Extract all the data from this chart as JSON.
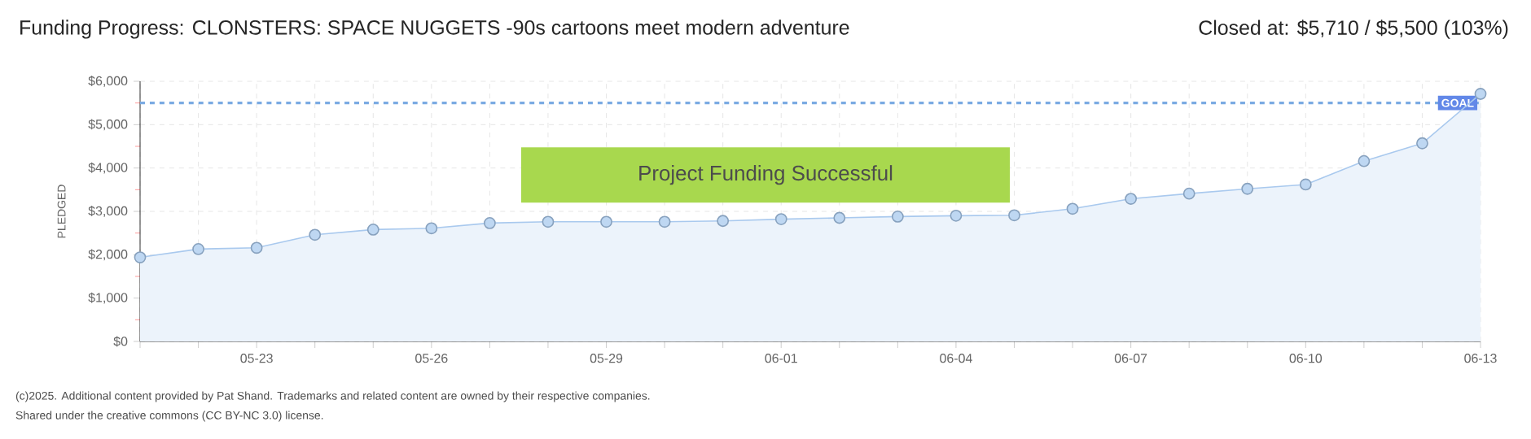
{
  "chart_data": {
    "type": "area",
    "title": "Funding Progress: CLONSTERS: SPACE NUGGETS -90s cartoons meet modern adventure",
    "ylabel": "PLEDGED",
    "categories": [
      null,
      null,
      "05-23",
      null,
      null,
      "05-26",
      null,
      null,
      "05-29",
      null,
      null,
      "06-01",
      null,
      null,
      "06-04",
      null,
      null,
      "06-07",
      null,
      null,
      "06-10",
      null,
      null,
      "06-13"
    ],
    "series": [
      {
        "color": "#a9c9ee",
        "values": [
          1940,
          2130,
          2160,
          2460,
          2580,
          2610,
          2730,
          2760,
          2760,
          2760,
          2780,
          2820,
          2850,
          2880,
          2900,
          2910,
          3060,
          3290,
          3410,
          3520,
          3620,
          4160,
          4570,
          5710
        ]
      }
    ],
    "ylim": [
      0,
      6000
    ],
    "yticks": [
      {
        "value": 0,
        "label": "$0"
      },
      {
        "value": 500,
        "label": null
      },
      {
        "value": 1000,
        "label": "$1,000"
      },
      {
        "value": 1500,
        "label": null
      },
      {
        "value": 2000,
        "label": "$2,000"
      },
      {
        "value": 2500,
        "label": null
      },
      {
        "value": 3000,
        "label": "$3,000"
      },
      {
        "value": 3500,
        "label": null
      },
      {
        "value": 4000,
        "label": "$4,000"
      },
      {
        "value": 4500,
        "label": null
      },
      {
        "value": 5000,
        "label": "$5,000"
      },
      {
        "value": 5500,
        "label": null
      },
      {
        "value": 6000,
        "label": "$6,000"
      }
    ],
    "ref_lines": [
      {
        "axis": "y",
        "value": 5500,
        "label": "GOAL",
        "color": "#7aaae2",
        "line_style": "dashed"
      }
    ],
    "grid": true,
    "marker": "circle",
    "annotations": [
      "Closed at: $5,710 / $5,500 (103%)",
      "Project Funding Successful",
      "(c)2025. Additional content provided by Pat Shand. Trademarks and related content are owned by their respective companies.",
      "Shared under the creative commons (CC BY-NC 3.0) license."
    ]
  }
}
